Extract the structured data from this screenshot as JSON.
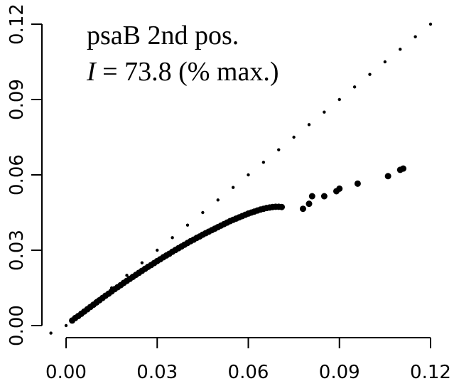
{
  "chart_data": {
    "type": "scatter",
    "title": "",
    "xlabel": "",
    "ylabel": "",
    "xlim": [
      -0.005,
      0.12
    ],
    "ylim": [
      -0.003,
      0.123
    ],
    "x_ticks": [
      "0.00",
      "0.03",
      "0.06",
      "0.09",
      "0.12"
    ],
    "y_ticks": [
      "0.00",
      "0.03",
      "0.06",
      "0.09",
      "0.12"
    ],
    "annotation": {
      "line1": "psaB 2nd pos.",
      "line2_italic": "I",
      "line2_rest": " = 73.8 (% max.)"
    },
    "series": [
      {
        "marker": "small-dot",
        "x": [
          -0.005,
          0.0,
          0.005,
          0.01,
          0.015,
          0.02,
          0.025,
          0.03,
          0.035,
          0.04,
          0.045,
          0.05,
          0.055,
          0.06,
          0.065,
          0.07,
          0.075,
          0.08,
          0.085,
          0.09,
          0.095,
          0.1,
          0.105,
          0.11,
          0.115,
          0.12
        ],
        "y": [
          -0.003,
          0.0,
          0.005,
          0.01,
          0.015,
          0.02,
          0.025,
          0.03,
          0.035,
          0.04,
          0.045,
          0.05,
          0.055,
          0.06,
          0.065,
          0.07,
          0.075,
          0.08,
          0.085,
          0.09,
          0.095,
          0.1,
          0.105,
          0.11,
          0.115,
          0.12
        ]
      },
      {
        "marker": "large-dot",
        "x": [
          0.002,
          0.003,
          0.004,
          0.005,
          0.006,
          0.007,
          0.008,
          0.009,
          0.01,
          0.011,
          0.012,
          0.013,
          0.014,
          0.015,
          0.016,
          0.017,
          0.018,
          0.019,
          0.02,
          0.021,
          0.022,
          0.023,
          0.024,
          0.025,
          0.026,
          0.027,
          0.028,
          0.029,
          0.03,
          0.031,
          0.032,
          0.033,
          0.034,
          0.035,
          0.036,
          0.037,
          0.038,
          0.039,
          0.04,
          0.041,
          0.042,
          0.043,
          0.044,
          0.045,
          0.046,
          0.047,
          0.048,
          0.049,
          0.05,
          0.051,
          0.052,
          0.053,
          0.054,
          0.055,
          0.056,
          0.057,
          0.058,
          0.059,
          0.06,
          0.061,
          0.062,
          0.063,
          0.064,
          0.065,
          0.066,
          0.067,
          0.068,
          0.069,
          0.07,
          0.071,
          0.078,
          0.08,
          0.081,
          0.085,
          0.089,
          0.09,
          0.096,
          0.106,
          0.11,
          0.111
        ],
        "y": [
          0.002,
          0.003,
          0.0038,
          0.0047,
          0.0056,
          0.0065,
          0.0074,
          0.0083,
          0.0092,
          0.0101,
          0.011,
          0.0119,
          0.0127,
          0.0136,
          0.0145,
          0.0153,
          0.0161,
          0.017,
          0.0178,
          0.0186,
          0.0194,
          0.0202,
          0.021,
          0.0218,
          0.0226,
          0.0234,
          0.0241,
          0.0249,
          0.0257,
          0.0264,
          0.0272,
          0.0279,
          0.0286,
          0.0294,
          0.0301,
          0.0308,
          0.0315,
          0.0322,
          0.0329,
          0.0336,
          0.0342,
          0.0349,
          0.0355,
          0.0362,
          0.0368,
          0.0374,
          0.038,
          0.0386,
          0.0392,
          0.0398,
          0.0404,
          0.041,
          0.0416,
          0.0421,
          0.0426,
          0.0431,
          0.0436,
          0.0441,
          0.0446,
          0.045,
          0.0454,
          0.0458,
          0.0462,
          0.0465,
          0.0468,
          0.047,
          0.0472,
          0.0473,
          0.0473,
          0.0472,
          0.0465,
          0.0485,
          0.0515,
          0.0515,
          0.0535,
          0.0545,
          0.0565,
          0.0595,
          0.062,
          0.0625
        ]
      }
    ]
  }
}
